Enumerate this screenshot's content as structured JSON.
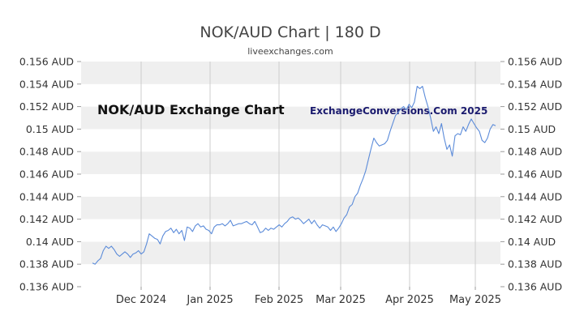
{
  "chart_data": {
    "type": "line",
    "title": "NOK/AUD Chart | 180 D",
    "subtitle": "liveexchanges.com",
    "annotations": [
      "NOK/AUD Exchange Chart",
      "ExchangeConversions.Com 2025"
    ],
    "xlabel": "",
    "ylabel": "",
    "ylim": [
      0.136,
      0.156
    ],
    "y_ticks": [
      "0.136 AUD",
      "0.138 AUD",
      "0.14 AUD",
      "0.142 AUD",
      "0.144 AUD",
      "0.146 AUD",
      "0.148 AUD",
      "0.15 AUD",
      "0.152 AUD",
      "0.154 AUD",
      "0.156 AUD"
    ],
    "x_ticks": [
      "Dec 2024",
      "Jan 2025",
      "Feb 2025",
      "Mar 2025",
      "Apr 2025",
      "May 2025"
    ],
    "grid": true,
    "series_color": "#5b8bd9",
    "values": [
      0.1381,
      0.138,
      0.1383,
      0.1385,
      0.1392,
      0.1396,
      0.1394,
      0.1396,
      0.1393,
      0.1389,
      0.1387,
      0.1389,
      0.1391,
      0.1389,
      0.1386,
      0.1389,
      0.139,
      0.1392,
      0.1389,
      0.1391,
      0.1398,
      0.1407,
      0.1405,
      0.1403,
      0.1402,
      0.1398,
      0.1405,
      0.1409,
      0.141,
      0.1412,
      0.1408,
      0.1411,
      0.1407,
      0.141,
      0.1401,
      0.1413,
      0.1412,
      0.1409,
      0.1414,
      0.1416,
      0.1413,
      0.1414,
      0.1411,
      0.141,
      0.1407,
      0.1413,
      0.1415,
      0.1415,
      0.1416,
      0.1414,
      0.1416,
      0.1419,
      0.1414,
      0.1415,
      0.1416,
      0.1416,
      0.1417,
      0.1418,
      0.1416,
      0.1415,
      0.1418,
      0.1413,
      0.1408,
      0.1409,
      0.1412,
      0.141,
      0.1412,
      0.1411,
      0.1413,
      0.1415,
      0.1413,
      0.1416,
      0.1418,
      0.1421,
      0.1422,
      0.142,
      0.1421,
      0.1419,
      0.1416,
      0.1418,
      0.142,
      0.1416,
      0.1419,
      0.1415,
      0.1412,
      0.1415,
      0.1414,
      0.1413,
      0.141,
      0.1413,
      0.1409,
      0.1412,
      0.1416,
      0.1421,
      0.1424,
      0.1431,
      0.1433,
      0.144,
      0.1443,
      0.145,
      0.1456,
      0.1463,
      0.1473,
      0.1483,
      0.1492,
      0.1488,
      0.1485,
      0.1486,
      0.1487,
      0.149,
      0.1498,
      0.1505,
      0.1512,
      0.1515,
      0.1518,
      0.152,
      0.1517,
      0.1522,
      0.1519,
      0.1524,
      0.1538,
      0.1536,
      0.1538,
      0.1528,
      0.152,
      0.151,
      0.1498,
      0.1502,
      0.1496,
      0.1505,
      0.1492,
      0.1482,
      0.1486,
      0.1476,
      0.1494,
      0.1496,
      0.1495,
      0.1502,
      0.1498,
      0.1504,
      0.1509,
      0.1505,
      0.1501,
      0.1498,
      0.149,
      0.1488,
      0.1492,
      0.15,
      0.1504,
      0.1503
    ]
  }
}
